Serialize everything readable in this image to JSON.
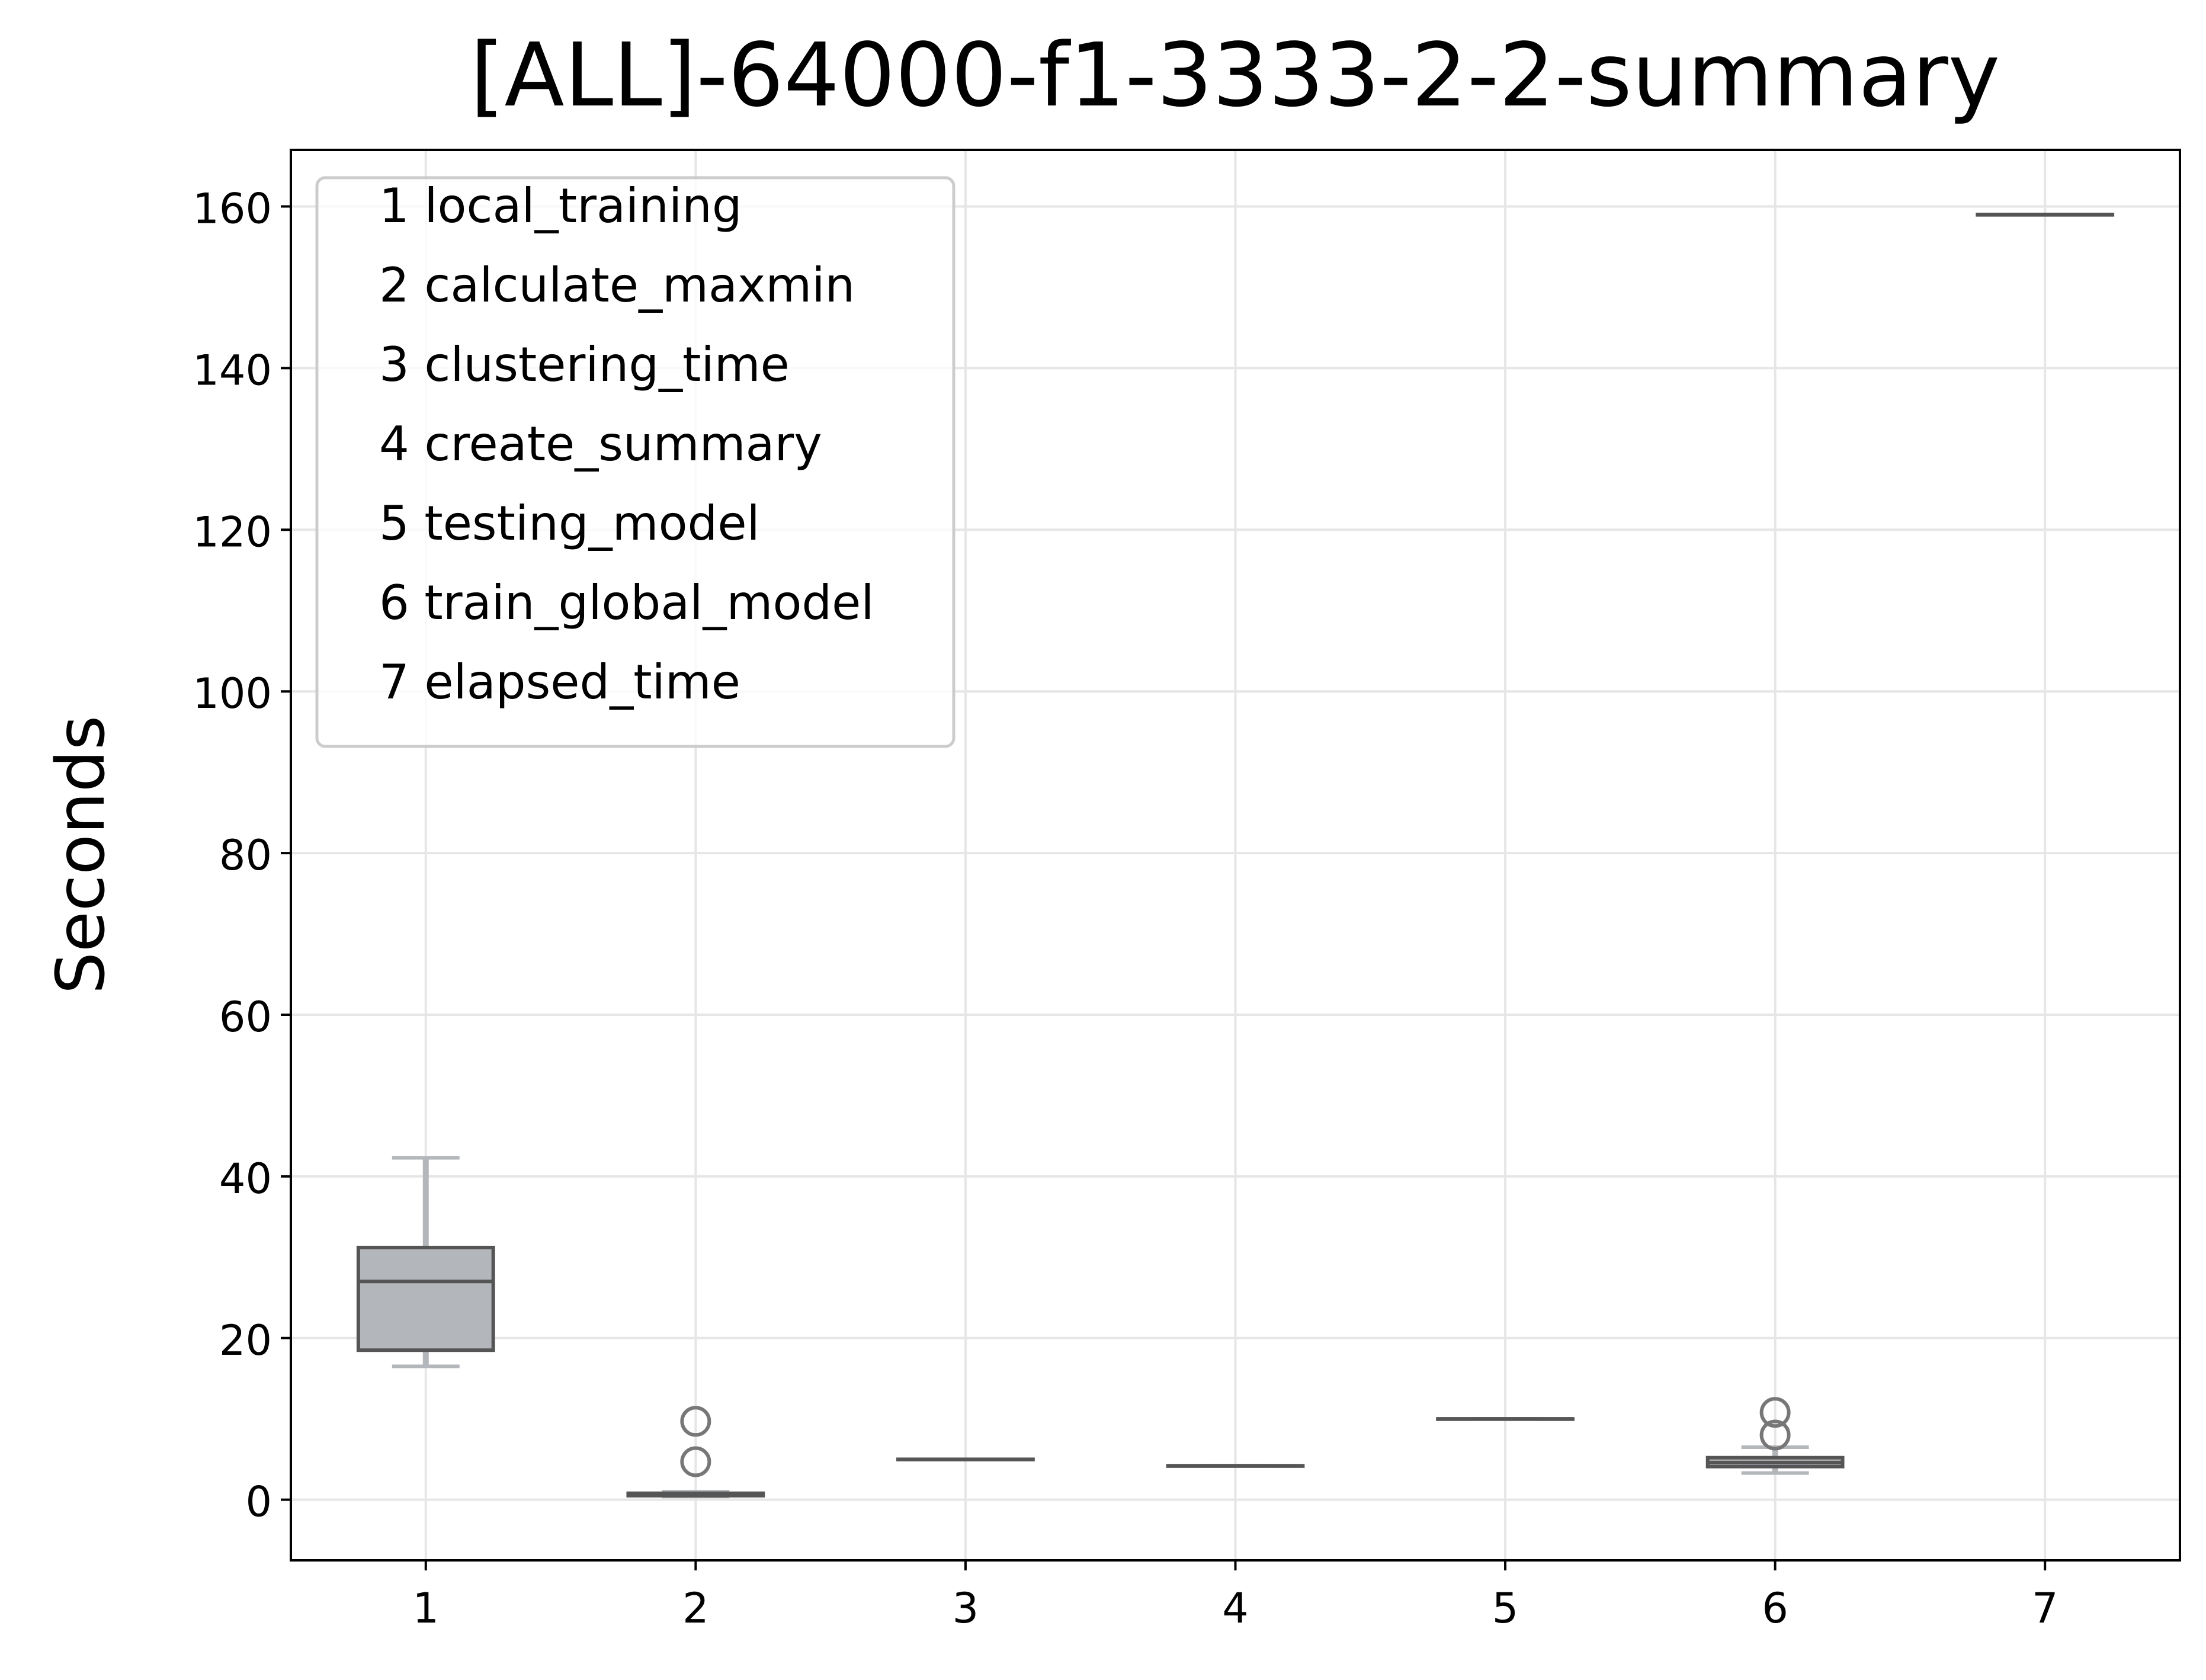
{
  "chart_data": {
    "type": "box",
    "title": "[ALL]-64000-f1-3333-2-2-summary",
    "xlabel": "",
    "ylabel": "Seconds",
    "x_tick_labels": [
      "1",
      "2",
      "3",
      "4",
      "5",
      "6",
      "7"
    ],
    "y_tick_labels": [
      "0",
      "20",
      "40",
      "60",
      "80",
      "100",
      "120",
      "140",
      "160"
    ],
    "y_ticks": [
      0,
      20,
      40,
      60,
      80,
      100,
      120,
      140,
      160
    ],
    "ylim": [
      -7.5,
      167
    ],
    "grid": true,
    "legend_position": "top-left",
    "legend": [
      "1 local_training",
      "2 calculate_maxmin",
      "3 clustering_time",
      "4 create_summary",
      "5 testing_model",
      "6 train_global_model",
      "7 elapsed_time"
    ],
    "boxes": [
      {
        "x": 1,
        "whisker_low": 16.5,
        "q1": 18.5,
        "median": 27.0,
        "q3": 31.2,
        "whisker_high": 42.3,
        "outliers": []
      },
      {
        "x": 2,
        "whisker_low": 0.4,
        "q1": 0.5,
        "median": 0.6,
        "q3": 0.8,
        "whisker_high": 1.0,
        "outliers": [
          4.7,
          9.7
        ]
      },
      {
        "x": 3,
        "whisker_low": 5.0,
        "q1": 5.0,
        "median": 5.0,
        "q3": 5.0,
        "whisker_high": 5.0,
        "outliers": []
      },
      {
        "x": 4,
        "whisker_low": 4.2,
        "q1": 4.2,
        "median": 4.2,
        "q3": 4.2,
        "whisker_high": 4.2,
        "outliers": []
      },
      {
        "x": 5,
        "whisker_low": 10.0,
        "q1": 10.0,
        "median": 10.0,
        "q3": 10.0,
        "whisker_high": 10.0,
        "outliers": []
      },
      {
        "x": 6,
        "whisker_low": 3.3,
        "q1": 4.1,
        "median": 4.6,
        "q3": 5.2,
        "whisker_high": 6.5,
        "outliers": [
          8.0,
          10.8
        ]
      },
      {
        "x": 7,
        "whisker_low": 159.0,
        "q1": 159.0,
        "median": 159.0,
        "q3": 159.0,
        "whisker_high": 159.0,
        "outliers": []
      }
    ],
    "colors": {
      "box_fill": "#b3b6ba",
      "box_edge": "#555555",
      "whisker": "#b3b6ba",
      "outlier": "#777777",
      "grid": "#e6e6e6",
      "axes": "#000000"
    }
  }
}
